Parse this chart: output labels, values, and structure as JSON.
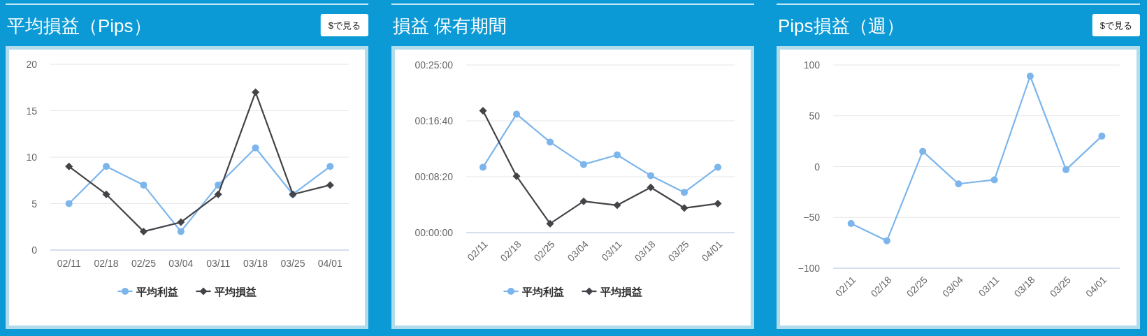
{
  "chart_data": [
    {
      "type": "line",
      "title": "平均損益（Pips）",
      "annotations": [
        "$で見る"
      ],
      "categories": [
        "02/11",
        "02/18",
        "02/25",
        "03/04",
        "03/11",
        "03/18",
        "03/25",
        "04/01"
      ],
      "series": [
        {
          "name": "平均利益",
          "color": "#7cb5ec",
          "marker": "circle",
          "values": [
            5,
            9,
            7,
            2,
            7,
            11,
            6,
            9
          ]
        },
        {
          "name": "平均損益",
          "color": "#434348",
          "marker": "diamond",
          "values": [
            9,
            6,
            2,
            3,
            6,
            17,
            6,
            7
          ]
        }
      ],
      "ylim": [
        0,
        20
      ],
      "yticks": [
        0,
        5,
        10,
        15,
        20
      ],
      "grid": "y",
      "legend": "bottom"
    },
    {
      "type": "line",
      "title": "損益 保有期間",
      "categories": [
        "02/11",
        "02/18",
        "02/25",
        "03/04",
        "03/11",
        "03/18",
        "03/25",
        "04/01"
      ],
      "series": [
        {
          "name": "平均利益",
          "color": "#7cb5ec",
          "marker": "circle",
          "values": [
            585,
            1060,
            810,
            610,
            695,
            510,
            360,
            585
          ]
        },
        {
          "name": "平均損益",
          "color": "#434348",
          "marker": "diamond",
          "values": [
            1090,
            505,
            80,
            280,
            245,
            405,
            220,
            260
          ]
        }
      ],
      "ylim": [
        0,
        1500
      ],
      "yticks": [
        {
          "value": 0,
          "label": "00:00:00"
        },
        {
          "value": 500,
          "label": "00:08:20"
        },
        {
          "value": 1000,
          "label": "00:16:40"
        },
        {
          "value": 1500,
          "label": "00:25:00"
        }
      ],
      "grid": "y",
      "legend": "bottom"
    },
    {
      "type": "line",
      "title": "Pips損益（週）",
      "annotations": [
        "$で見る"
      ],
      "categories": [
        "02/11",
        "02/18",
        "02/25",
        "03/04",
        "03/11",
        "03/18",
        "03/25",
        "04/01"
      ],
      "series": [
        {
          "color": "#7cb5ec",
          "marker": "circle",
          "values": [
            -56,
            -73,
            15,
            -17,
            -13,
            89,
            -3,
            30
          ]
        }
      ],
      "ylim": [
        -100,
        100
      ],
      "yticks": [
        -100,
        -50,
        0,
        50,
        100
      ],
      "grid": "y"
    }
  ]
}
